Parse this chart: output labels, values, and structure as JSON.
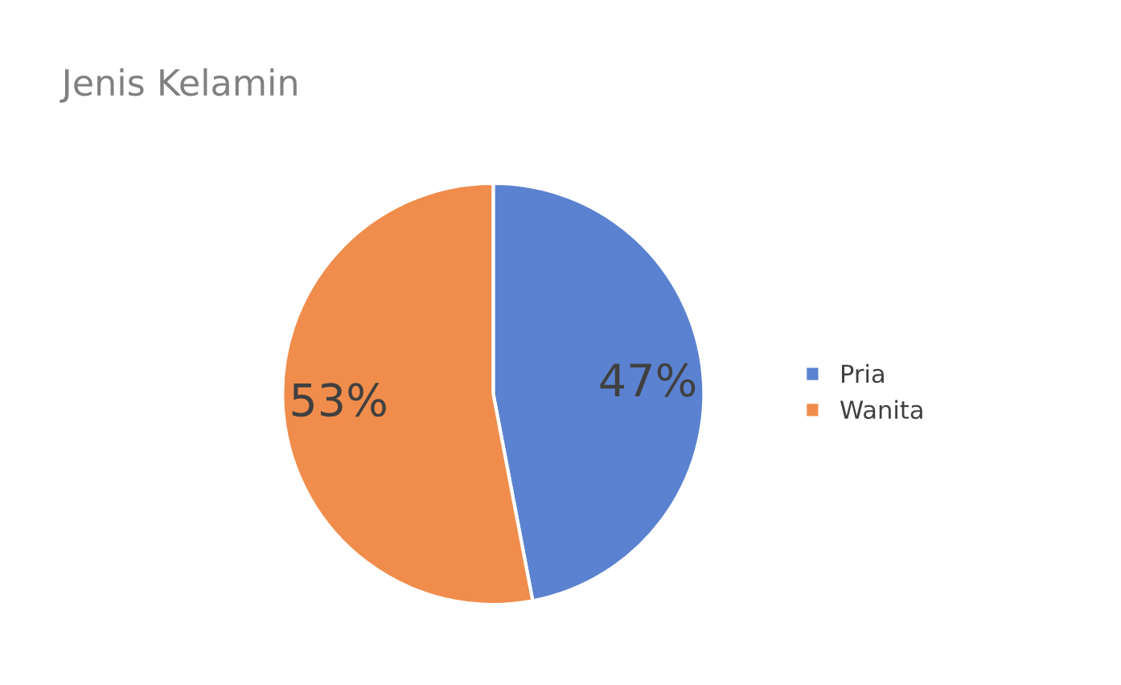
{
  "chart_data": {
    "type": "pie",
    "title": "Jenis Kelamin",
    "categories": [
      "Pria",
      "Wanita"
    ],
    "values": [
      47,
      53
    ],
    "colors": [
      "#5b82d0",
      "#f08d4c"
    ],
    "value_labels": [
      "47%",
      "53%"
    ],
    "legend": "right"
  }
}
